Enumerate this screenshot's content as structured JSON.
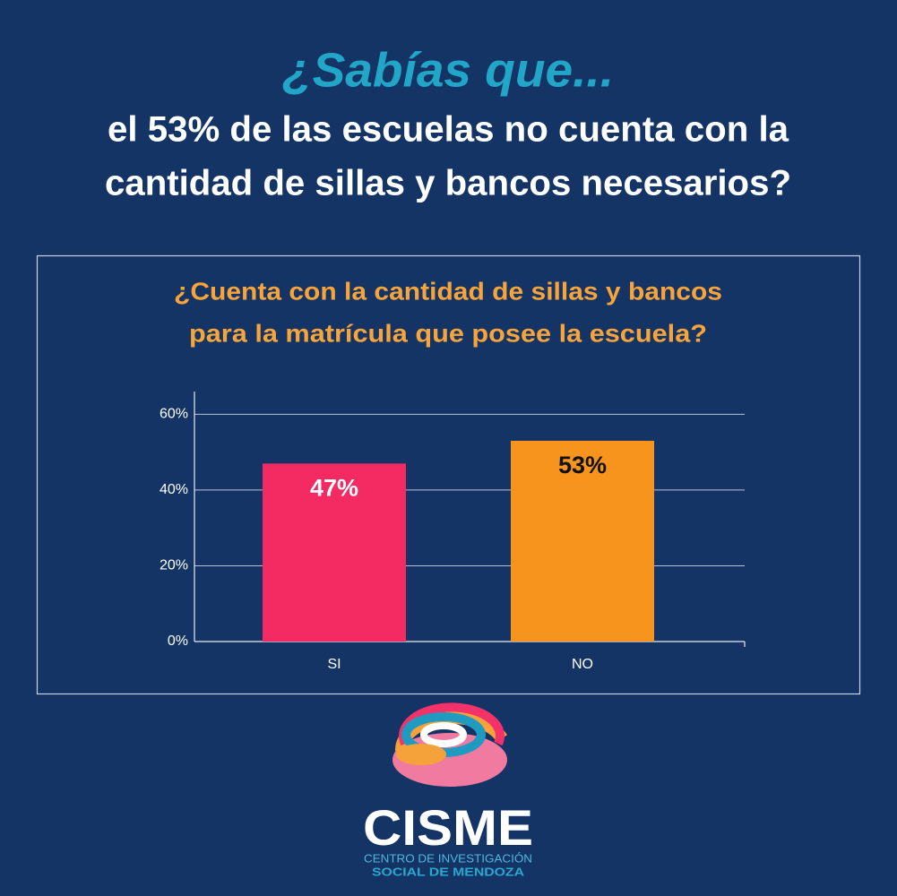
{
  "header": {
    "kicker": "¿Sabías que...",
    "headline": [
      "el 53% de las escuelas no cuenta con la",
      "cantidad de sillas y bancos necesarios?"
    ]
  },
  "chart_data": {
    "type": "bar",
    "title": [
      "¿Cuenta con la cantidad de sillas y bancos",
      "para la matrícula que posee la escuela?"
    ],
    "categories": [
      "SI",
      "NO"
    ],
    "values": [
      47,
      53
    ],
    "value_labels": [
      "47%",
      "53%"
    ],
    "colors": [
      "#f42a63",
      "#f7941d"
    ],
    "value_label_colors": [
      "#ffffff",
      "#111111"
    ],
    "ylim": [
      0,
      66
    ],
    "yticks": [
      {
        "value": 0,
        "label": "0%"
      },
      {
        "value": 20,
        "label": "20%"
      },
      {
        "value": 40,
        "label": "40%"
      },
      {
        "value": 60,
        "label": "60%"
      }
    ],
    "grid": true
  },
  "logo": {
    "name": "CISME",
    "line1": "CENTRO DE INVESTIGACIÓN",
    "line2": "SOCIAL DE MENDOZA"
  }
}
